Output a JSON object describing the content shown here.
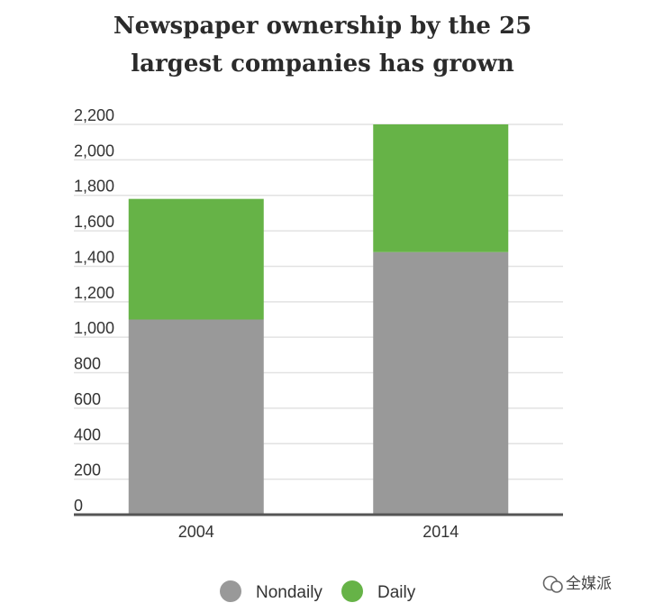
{
  "chart_data": {
    "type": "bar",
    "stacked": true,
    "title_lines": [
      "Newspaper ownership by the 25",
      "largest companies has grown"
    ],
    "categories": [
      "2004",
      "2014"
    ],
    "series": [
      {
        "name": "Nondaily",
        "color": "#999999",
        "values": [
          1100,
          1480
        ]
      },
      {
        "name": "Daily",
        "color": "#66b347",
        "values": [
          680,
          720
        ]
      }
    ],
    "y_ticks": [
      "0",
      "200",
      "400",
      "600",
      "800",
      "1,000",
      "1,200",
      "1,400",
      "1,600",
      "1,800",
      "2,000",
      "2,200"
    ],
    "ylim": [
      0,
      2200
    ],
    "grid": true,
    "legend": "bottom-center",
    "xlabel": "",
    "ylabel": ""
  },
  "watermark": {
    "icon": "wechat-icon",
    "text": "全媒派"
  }
}
